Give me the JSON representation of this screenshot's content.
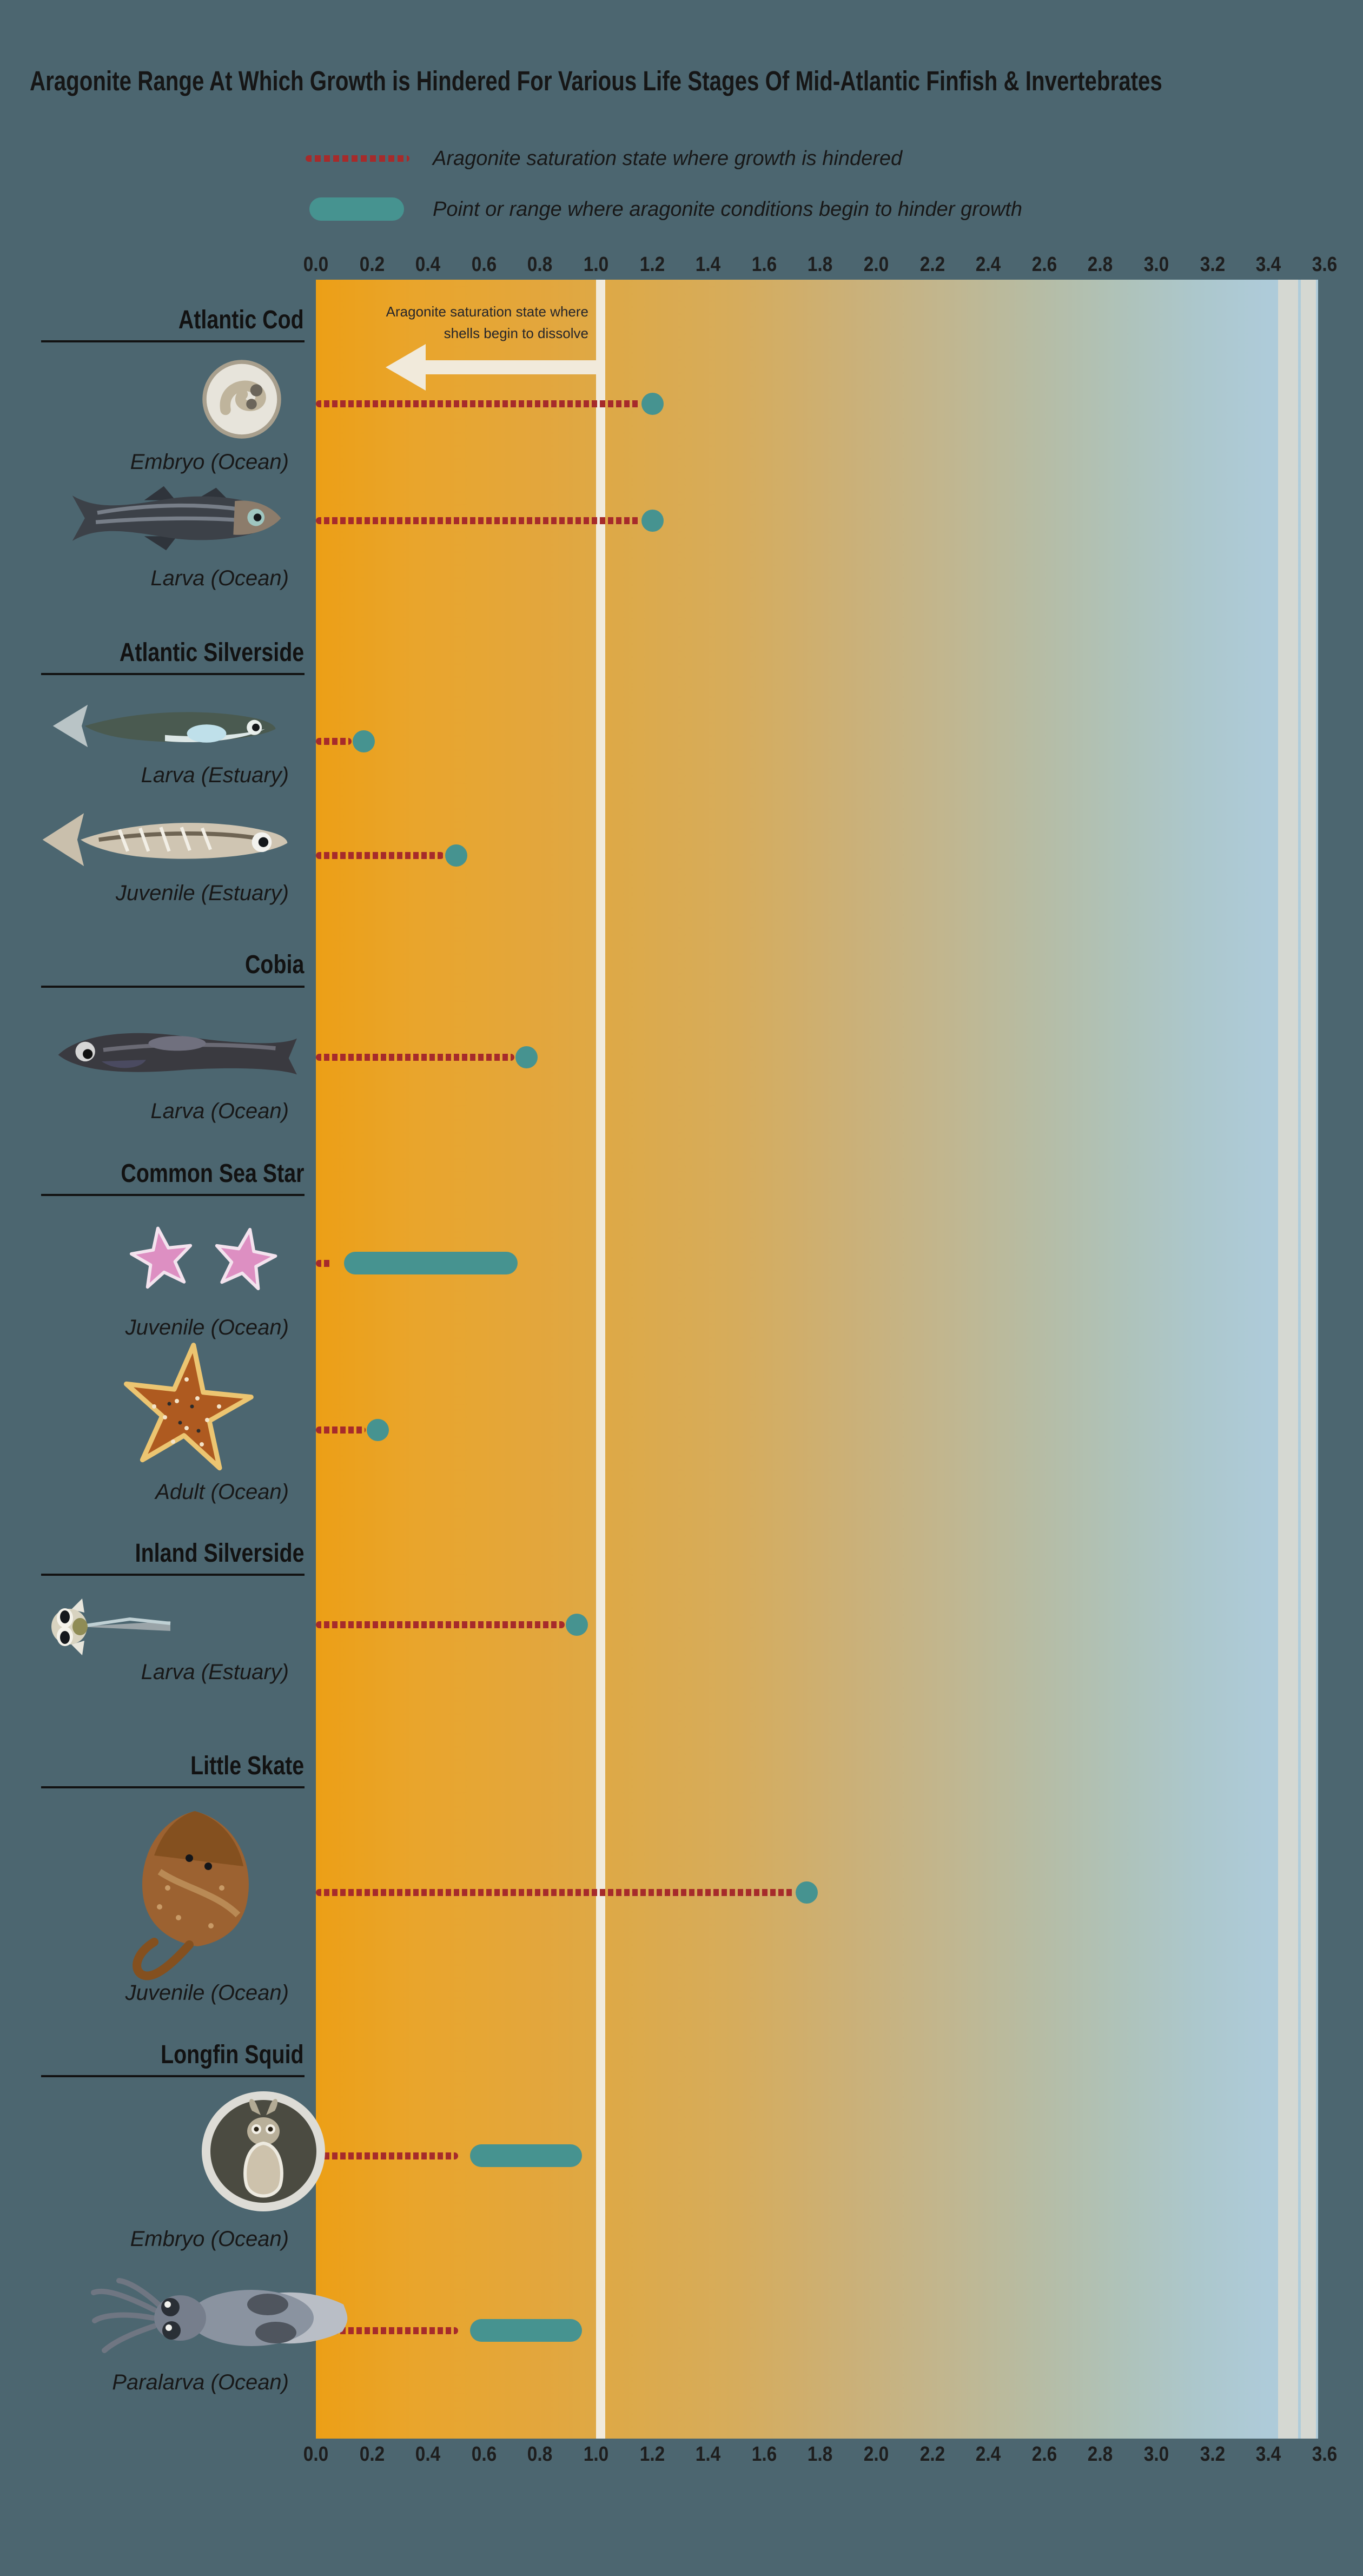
{
  "title": "Aragonite Range At Which Growth is Hindered For Various Life Stages Of Mid-Atlantic Finfish & Invertebrates",
  "legend": {
    "items": [
      {
        "swatch": "red-dashed-line",
        "label": "Aragonite saturation state where growth is hindered"
      },
      {
        "swatch": "teal-pill",
        "label": "Point or range where aragonite conditions begin to hinder growth"
      }
    ]
  },
  "annotation": {
    "line1": "Aragonite saturation state where",
    "line2": "shells begin to dissolve",
    "arrow": "left-arrow"
  },
  "colors": {
    "background": "#4C6670",
    "dashed_line": "#A62B2B",
    "marker": "#469390",
    "reference_line": "#F1EADB",
    "text": "#1B1B1B"
  },
  "chart_data": {
    "type": "scatter",
    "subtype": "dot-and-range lollipop rows",
    "xlim": [
      0.0,
      3.6
    ],
    "x_tick_labels": [
      "0.0",
      "0.2",
      "0.4",
      "0.6",
      "0.8",
      "1.0",
      "1.2",
      "1.4",
      "1.6",
      "1.8",
      "2.0",
      "2.2",
      "2.4",
      "2.6",
      "2.8",
      "3.0",
      "3.2",
      "3.4",
      "3.6"
    ],
    "axis_positions": [
      "top",
      "bottom"
    ],
    "reference_line": {
      "value": 1.0,
      "label": "Aragonite saturation state where shells begin to dissolve"
    },
    "background_gradient": [
      "#EC9F16",
      "#DDA948",
      "#CBB077",
      "#B6BCA4",
      "#ACC7CC",
      "#AFCCDB"
    ],
    "groups": [
      {
        "species": "Atlantic Cod",
        "stages": [
          {
            "label": "Embryo (Ocean)",
            "icon": "cod-embryo",
            "kind": "point",
            "value": 1.2
          },
          {
            "label": "Larva (Ocean)",
            "icon": "cod-larva",
            "kind": "point",
            "value": 1.2
          }
        ]
      },
      {
        "species": "Atlantic Silverside",
        "stages": [
          {
            "label": "Larva (Estuary)",
            "icon": "silverside-larva",
            "kind": "point",
            "value": 0.17
          },
          {
            "label": "Juvenile (Estuary)",
            "icon": "silverside-juvenile",
            "kind": "point",
            "value": 0.5
          }
        ]
      },
      {
        "species": "Cobia",
        "stages": [
          {
            "label": "Larva (Ocean)",
            "icon": "cobia-larva",
            "kind": "point",
            "value": 0.75
          }
        ]
      },
      {
        "species": "Common Sea Star",
        "stages": [
          {
            "label": "Juvenile (Ocean)",
            "icon": "seastar-juvenile",
            "kind": "range",
            "start": 0.1,
            "end": 0.72
          },
          {
            "label": "Adult (Ocean)",
            "icon": "seastar-adult",
            "kind": "point",
            "value": 0.22
          }
        ]
      },
      {
        "species": "Inland Silverside",
        "stages": [
          {
            "label": "Larva (Estuary)",
            "icon": "inland-silverside-larva",
            "kind": "point",
            "value": 0.93
          }
        ]
      },
      {
        "species": "Little Skate",
        "stages": [
          {
            "label": "Juvenile (Ocean)",
            "icon": "little-skate",
            "kind": "point",
            "value": 1.75
          }
        ]
      },
      {
        "species": "Longfin Squid",
        "stages": [
          {
            "label": "Embryo (Ocean)",
            "icon": "squid-embryo",
            "kind": "range",
            "start": 0.55,
            "end": 0.95
          },
          {
            "label": "Paralarva (Ocean)",
            "icon": "squid-paralarva",
            "kind": "range",
            "start": 0.55,
            "end": 0.95
          }
        ]
      }
    ]
  }
}
